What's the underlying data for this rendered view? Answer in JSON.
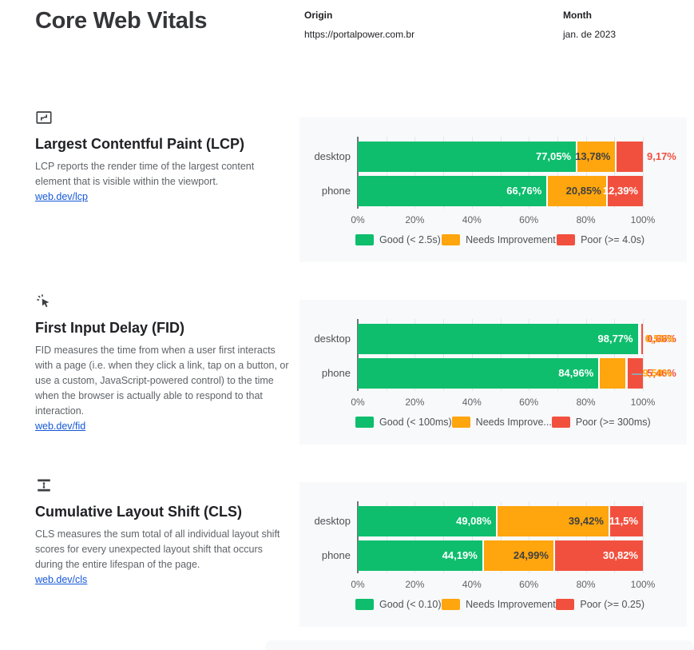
{
  "header": {
    "title": "Core Web Vitals",
    "origin_label": "Origin",
    "origin_value": "https://portalpower.com.br",
    "month_label": "Month",
    "month_value": "jan. de 2023"
  },
  "colors": {
    "good": "#0ebe6d",
    "needs_improvement": "#ffa50d",
    "poor": "#f2503f",
    "card_background": "#f8f9fa",
    "link": "#1558d6"
  },
  "sections": [
    {
      "icon": "lcp-frame-icon",
      "title": "Largest Contentful Paint (LCP)",
      "description": "LCP reports the render time of the largest content element that is visible within the viewport.",
      "link": "web.dev/lcp"
    },
    {
      "icon": "fid-cursor-icon",
      "title": "First Input Delay (FID)",
      "description": "FID measures the time from when a user first interacts with a page (i.e. when they click a link, tap on a button, or use a custom, JavaScript-powered control) to the time when the browser is actually able to respond to that interaction.",
      "link": "web.dev/fid"
    },
    {
      "icon": "cls-shift-icon",
      "title": "Cumulative Layout Shift (CLS)",
      "description": "CLS measures the sum total of all individual layout shift scores for every unexpected layout shift that occurs during the entire lifespan of the page.",
      "link": "web.dev/cls"
    }
  ],
  "chart_data": [
    {
      "type": "bar",
      "stacked": true,
      "orientation": "horizontal",
      "metric": "LCP",
      "categories": [
        "desktop",
        "phone"
      ],
      "series": [
        {
          "name": "Good (< 2.5s)",
          "color": "#0ebe6d",
          "values": [
            77.05,
            66.76
          ],
          "labels": [
            "77,05%",
            "66,76%"
          ],
          "label_placement": [
            "inside",
            "inside"
          ]
        },
        {
          "name": "Needs Improvement",
          "color": "#ffa50d",
          "values": [
            13.78,
            20.85
          ],
          "labels": [
            "13,78%",
            "20,85%"
          ],
          "label_placement": [
            "inside",
            "inside"
          ]
        },
        {
          "name": "Poor (>= 4.0s)",
          "color": "#f2503f",
          "values": [
            9.17,
            12.39
          ],
          "labels": [
            "9,17%",
            "12,39%"
          ],
          "label_placement": [
            "outside",
            "inside"
          ]
        }
      ],
      "x_ticks": [
        "0%",
        "20%",
        "40%",
        "60%",
        "80%",
        "100%"
      ],
      "xlim": [
        0,
        100
      ],
      "grid_step_percent": 10,
      "legend_position": "bottom"
    },
    {
      "type": "bar",
      "stacked": true,
      "orientation": "horizontal",
      "metric": "FID",
      "categories": [
        "desktop",
        "phone"
      ],
      "series": [
        {
          "name": "Good (< 100ms)",
          "color": "#0ebe6d",
          "values": [
            98.77,
            84.96
          ],
          "labels": [
            "98,77%",
            "84,96%"
          ],
          "label_placement": [
            "inside",
            "inside"
          ]
        },
        {
          "name": "Needs Improve...",
          "color": "#ffa50d",
          "values": [
            0.55,
            9.58
          ],
          "labels": [
            "0,55%",
            "9,58%"
          ],
          "label_placement": [
            "outside",
            "outside-leader"
          ]
        },
        {
          "name": "Poor (>= 300ms)",
          "color": "#f2503f",
          "values": [
            0.68,
            5.46
          ],
          "labels": [
            "0,68%",
            "5,46%"
          ],
          "label_placement": [
            "outside",
            "outside"
          ]
        }
      ],
      "x_ticks": [
        "0%",
        "20%",
        "40%",
        "60%",
        "80%",
        "100%"
      ],
      "xlim": [
        0,
        100
      ],
      "grid_step_percent": 10,
      "legend_position": "bottom"
    },
    {
      "type": "bar",
      "stacked": true,
      "orientation": "horizontal",
      "metric": "CLS",
      "categories": [
        "desktop",
        "phone"
      ],
      "series": [
        {
          "name": "Good (< 0.10)",
          "color": "#0ebe6d",
          "values": [
            49.08,
            44.19
          ],
          "labels": [
            "49,08%",
            "44,19%"
          ],
          "label_placement": [
            "inside",
            "inside"
          ]
        },
        {
          "name": "Needs Improvement",
          "color": "#ffa50d",
          "values": [
            39.42,
            24.99
          ],
          "labels": [
            "39,42%",
            "24,99%"
          ],
          "label_placement": [
            "inside",
            "inside"
          ]
        },
        {
          "name": "Poor (>= 0.25)",
          "color": "#f2503f",
          "values": [
            11.5,
            30.82
          ],
          "labels": [
            "11,5%",
            "30,82%"
          ],
          "label_placement": [
            "inside",
            "inside"
          ]
        }
      ],
      "x_ticks": [
        "0%",
        "20%",
        "40%",
        "60%",
        "80%",
        "100%"
      ],
      "xlim": [
        0,
        100
      ],
      "grid_step_percent": 10,
      "legend_position": "bottom"
    }
  ]
}
